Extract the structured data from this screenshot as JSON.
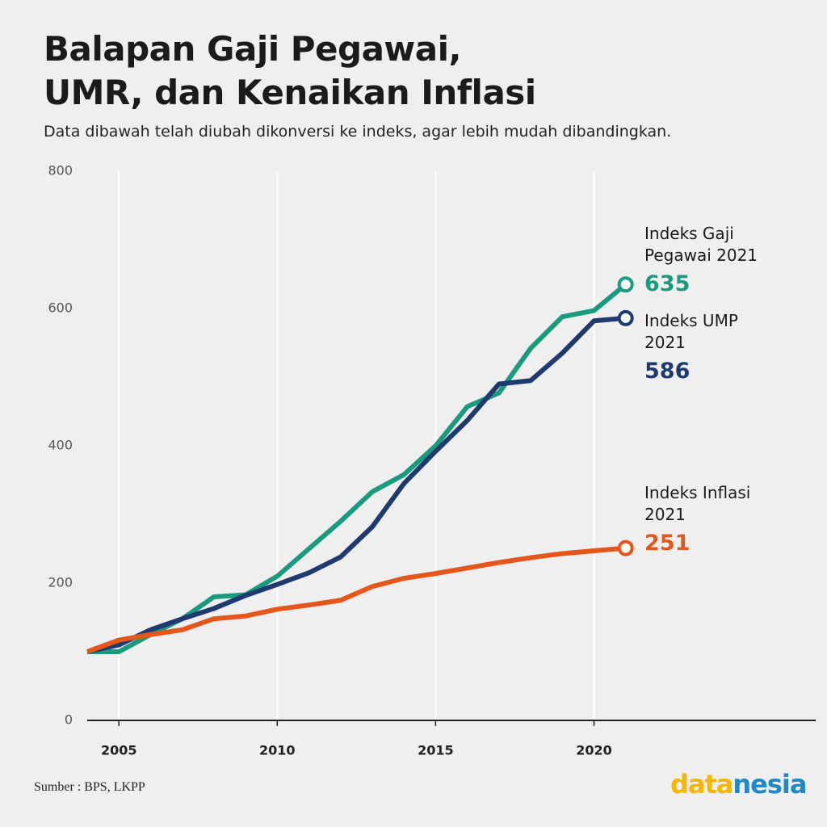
{
  "title": [
    "Balapan Gaji Pegawai,",
    "UMR, dan Kenaikan Inflasi"
  ],
  "subtitle": "Data dibawah telah diubah dikonversi ke indeks, agar lebih mudah dibandingkan.",
  "source": "Sumber : BPS, LKPP",
  "logo": [
    "data",
    "nesia"
  ],
  "chart_data": {
    "type": "line",
    "x": [
      2004,
      2005,
      2006,
      2007,
      2008,
      2009,
      2010,
      2011,
      2012,
      2013,
      2014,
      2015,
      2016,
      2017,
      2018,
      2019,
      2020,
      2021
    ],
    "series": [
      {
        "name": "Indeks Gaji Pegawai 2021",
        "color": "#1a9a7e",
        "values": [
          100,
          100,
          125,
          148,
          180,
          183,
          210,
          250,
          290,
          333,
          358,
          400,
          457,
          477,
          542,
          588,
          597,
          635
        ]
      },
      {
        "name": "Indeks UMP 2021",
        "color": "#1f3a6e",
        "values": [
          100,
          110,
          132,
          148,
          163,
          182,
          198,
          215,
          238,
          282,
          345,
          392,
          437,
          490,
          495,
          535,
          582,
          586
        ]
      },
      {
        "name": "Indeks Inflasi 2021",
        "color": "#e5561b",
        "values": [
          100,
          117,
          125,
          132,
          148,
          152,
          162,
          168,
          175,
          195,
          207,
          214,
          222,
          230,
          237,
          243,
          247,
          251
        ]
      }
    ],
    "xlim": [
      2004,
      2027
    ],
    "ylim": [
      0,
      800
    ],
    "xticks": [
      2005,
      2010,
      2015,
      2020
    ],
    "yticks": [
      0,
      200,
      400,
      600,
      800
    ],
    "grid": "x"
  }
}
